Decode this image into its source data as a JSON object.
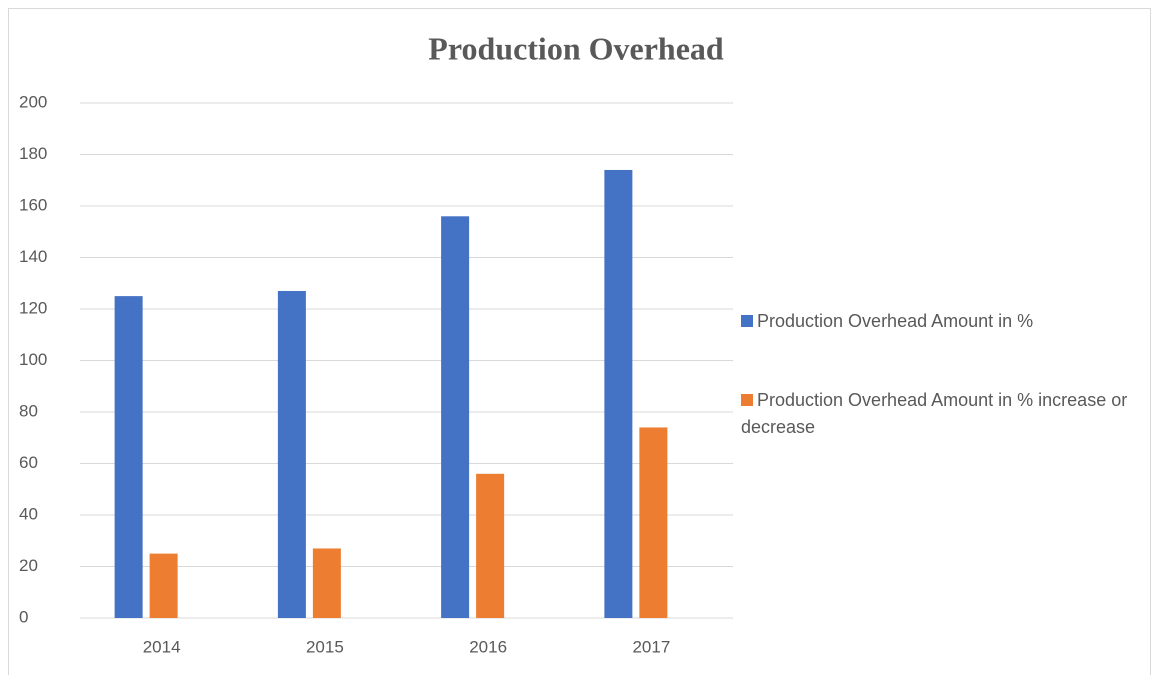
{
  "chart_data": {
    "type": "bar",
    "title": "Production Overhead",
    "categories": [
      "2014",
      "2015",
      "2016",
      "2017"
    ],
    "series": [
      {
        "name": "Production Overhead Amount in %",
        "color": "#4472c4",
        "values": [
          125,
          127,
          156,
          174
        ]
      },
      {
        "name": "Production Overhead Amount in % increase or decrease",
        "color": "#ed7d31",
        "values": [
          25,
          27,
          56,
          74
        ]
      }
    ],
    "ylim": [
      0,
      200
    ],
    "yticks": [
      0,
      20,
      40,
      60,
      80,
      100,
      120,
      140,
      160,
      180,
      200
    ],
    "grid": true,
    "legend": "right"
  }
}
